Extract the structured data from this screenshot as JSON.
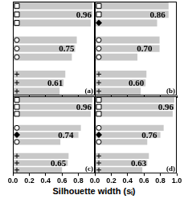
{
  "chart_data": [
    {
      "type": "bar",
      "title": "(a)",
      "orientation": "horizontal",
      "tick_labels": false,
      "categories": [
        null,
        null,
        null,
        null,
        null,
        null,
        null,
        null,
        null,
        null,
        null
      ],
      "xlim": [
        0,
        1
      ],
      "xticks": [
        {
          "value": 0,
          "label": "0.0"
        },
        0.2,
        0.4,
        0.6,
        0.8,
        {
          "value": 1,
          "label": "1.0"
        }
      ],
      "series": [
        {
          "color": "#c8c8c8",
          "marker": "square",
          "values": [
            0.97,
            0.97,
            0.95,
            null,
            null,
            null,
            null,
            null,
            null,
            null,
            null
          ]
        },
        {
          "color": "#c8c8c8",
          "marker": "circle",
          "values": [
            null,
            null,
            null,
            null,
            0.78,
            0.76,
            0.72,
            null,
            null,
            null,
            null
          ]
        },
        {
          "color": "#c8c8c8",
          "marker": "plus",
          "values": [
            null,
            null,
            null,
            null,
            null,
            null,
            null,
            null,
            0.64,
            0.62,
            0.57
          ]
        }
      ],
      "annotations": [
        {
          "value": 0.96,
          "label": "0.96",
          "row": 1
        },
        {
          "value": 0.75,
          "label": "0.75",
          "row": 5
        },
        {
          "value": 0.61,
          "label": "0.61",
          "row": 9
        }
      ]
    },
    {
      "type": "bar",
      "title": "(b)",
      "orientation": "horizontal",
      "tick_labels": false,
      "categories": [
        null,
        null,
        null,
        null,
        null,
        null,
        null,
        null,
        null,
        null,
        null
      ],
      "xlim": [
        0,
        1
      ],
      "xticks": [
        {
          "value": 0,
          "label": "0.0"
        },
        0.2,
        0.4,
        0.6,
        0.8,
        {
          "value": 1,
          "label": "1.0"
        }
      ],
      "series": [
        {
          "color": "#c8c8c8",
          "marker": "square",
          "values": [
            0.9,
            0.9,
            null,
            null,
            null,
            null,
            null,
            null,
            null,
            null,
            null
          ]
        },
        {
          "color": "#c8c8c8",
          "marker": "diamond",
          "values": [
            null,
            null,
            0.76,
            null,
            null,
            null,
            null,
            null,
            null,
            null,
            null
          ]
        },
        {
          "color": "#c8c8c8",
          "marker": "circle",
          "values": [
            null,
            null,
            null,
            null,
            0.79,
            0.79,
            0.52,
            null,
            null,
            null,
            null
          ]
        },
        {
          "color": "#c8c8c8",
          "marker": "plus",
          "values": [
            null,
            null,
            null,
            null,
            null,
            null,
            null,
            null,
            0.63,
            0.62,
            0.56
          ]
        }
      ],
      "annotations": [
        {
          "value": 0.86,
          "label": "0.86",
          "row": 1
        },
        {
          "value": 0.7,
          "label": "0.70",
          "row": 5
        },
        {
          "value": 0.6,
          "label": "0.60",
          "row": 9
        }
      ]
    },
    {
      "type": "bar",
      "title": "(c)",
      "orientation": "horizontal",
      "tick_labels": "x",
      "categories": [
        null,
        null,
        null,
        null,
        null,
        null,
        null,
        null,
        null,
        null,
        null
      ],
      "xlim": [
        0,
        1
      ],
      "xticks": [
        {
          "value": 0,
          "label": "0.0"
        },
        0.2,
        0.4,
        0.6,
        0.8
      ],
      "series": [
        {
          "color": "#c8c8c8",
          "marker": "square",
          "values": [
            0.97,
            0.97,
            0.95,
            null,
            null,
            null,
            null,
            null,
            null,
            null,
            null
          ]
        },
        {
          "color": "#c8c8c8",
          "marker": "circle",
          "values": [
            null,
            null,
            null,
            null,
            0.83,
            null,
            0.58,
            null,
            null,
            null,
            null
          ]
        },
        {
          "color": "#c8c8c8",
          "marker": "diamond",
          "values": [
            null,
            null,
            null,
            null,
            null,
            0.8,
            null,
            null,
            null,
            null,
            null
          ]
        },
        {
          "color": "#c8c8c8",
          "marker": "plus",
          "values": [
            null,
            null,
            null,
            null,
            null,
            null,
            null,
            null,
            0.68,
            0.67,
            0.6
          ]
        }
      ],
      "annotations": [
        {
          "value": 0.96,
          "label": "0.96",
          "row": 1
        },
        {
          "value": 0.74,
          "label": "0.74",
          "row": 5
        },
        {
          "value": 0.65,
          "label": "0.65",
          "row": 9
        }
      ]
    },
    {
      "type": "bar",
      "title": "(d)",
      "orientation": "horizontal",
      "tick_labels": "x",
      "categories": [
        null,
        null,
        null,
        null,
        null,
        null,
        null,
        null,
        null,
        null,
        null
      ],
      "xlim": [
        0,
        1
      ],
      "xticks": [
        {
          "value": 0,
          "label": "0.0"
        },
        0.2,
        0.4,
        0.6,
        0.8,
        {
          "value": 1,
          "label": "1.0"
        }
      ],
      "series": [
        {
          "color": "#c8c8c8",
          "marker": "square",
          "values": [
            0.97,
            0.97,
            0.95,
            null,
            null,
            null,
            null,
            null,
            null,
            null,
            null
          ]
        },
        {
          "color": "#c8c8c8",
          "marker": "circle",
          "values": [
            null,
            null,
            null,
            null,
            0.84,
            null,
            0.64,
            null,
            null,
            null,
            null
          ]
        },
        {
          "color": "#c8c8c8",
          "marker": "diamond",
          "values": [
            null,
            null,
            null,
            null,
            null,
            0.8,
            null,
            null,
            null,
            null,
            null
          ]
        },
        {
          "color": "#c8c8c8",
          "marker": "plus",
          "values": [
            null,
            null,
            null,
            null,
            null,
            null,
            null,
            null,
            0.66,
            0.64,
            0.58
          ]
        }
      ],
      "annotations": [
        {
          "value": 0.96,
          "label": "0.96",
          "row": 1
        },
        {
          "value": 0.76,
          "label": "0.76",
          "row": 5
        },
        {
          "value": 0.63,
          "label": "0.63",
          "row": 9
        }
      ]
    }
  ],
  "xlabel": "Silhouette width (sᵢ)"
}
